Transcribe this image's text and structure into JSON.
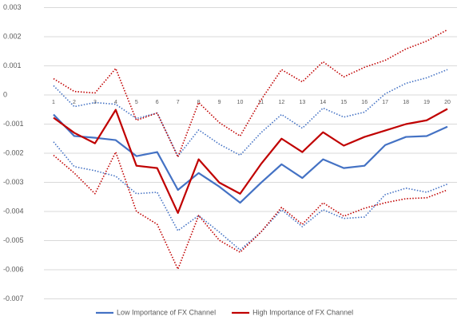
{
  "chart_data": {
    "type": "line",
    "categories": [
      "1",
      "2",
      "3",
      "4",
      "5",
      "6",
      "7",
      "8",
      "9",
      "10",
      "11",
      "12",
      "13",
      "14",
      "15",
      "16",
      "17",
      "18",
      "19",
      "20"
    ],
    "ylim": [
      -0.007,
      0.003
    ],
    "yticks": [
      0.003,
      0.002,
      0.001,
      0,
      -0.001,
      -0.002,
      -0.003,
      -0.004,
      -0.005,
      -0.006,
      -0.007
    ],
    "grid": true,
    "legend": "bottom",
    "series": [
      {
        "color": "#4472c4",
        "style": "dotted",
        "values": [
          0.00032,
          -0.0004,
          -0.00026,
          -0.00032,
          -0.00081,
          -0.00062,
          -0.0021,
          -0.0012,
          -0.00169,
          -0.00207,
          -0.0013,
          -0.00067,
          -0.00114,
          -0.00045,
          -0.00076,
          -0.00059,
          4e-05,
          0.0004,
          0.00059,
          0.00087
        ]
      },
      {
        "color": "#4472c4",
        "style": "dotted",
        "values": [
          -0.00161,
          -0.00246,
          -0.0026,
          -0.00279,
          -0.00339,
          -0.00334,
          -0.00466,
          -0.00414,
          -0.00471,
          -0.00532,
          -0.00471,
          -0.00394,
          -0.00452,
          -0.00394,
          -0.00424,
          -0.00419,
          -0.00342,
          -0.0032,
          -0.00334,
          -0.00306
        ]
      },
      {
        "color": "#c00000",
        "style": "dotted",
        "values": [
          0.00056,
          0.00012,
          7e-05,
          0.00091,
          -0.00087,
          -0.00062,
          -0.00213,
          -0.00026,
          -0.00095,
          -0.00141,
          -0.00018,
          0.00087,
          0.00045,
          0.00114,
          0.00062,
          0.00095,
          0.00119,
          0.00158,
          0.00185,
          0.00224
        ]
      },
      {
        "color": "#c00000",
        "style": "dotted",
        "values": [
          -0.00207,
          -0.00268,
          -0.00339,
          -0.00196,
          -0.004,
          -0.00444,
          -0.00598,
          -0.00414,
          -0.00499,
          -0.0054,
          -0.00471,
          -0.00386,
          -0.00444,
          -0.0037,
          -0.00416,
          -0.00389,
          -0.0037,
          -0.00356,
          -0.00353,
          -0.00326
        ]
      },
      {
        "name": "Low Importance of FX Channel",
        "color": "#4472c4",
        "style": "solid",
        "values": [
          -0.00067,
          -0.00141,
          -0.00147,
          -0.00155,
          -0.0021,
          -0.00196,
          -0.00326,
          -0.00268,
          -0.00315,
          -0.0037,
          -0.00302,
          -0.00238,
          -0.00285,
          -0.00221,
          -0.00251,
          -0.00243,
          -0.00172,
          -0.00144,
          -0.00141,
          -0.00109
        ]
      },
      {
        "name": "High Importance of FX Channel",
        "color": "#c00000",
        "style": "solid",
        "values": [
          -0.00078,
          -0.0013,
          -0.00166,
          -0.00051,
          -0.00243,
          -0.00251,
          -0.00405,
          -0.00221,
          -0.00301,
          -0.00339,
          -0.00238,
          -0.0015,
          -0.00196,
          -0.00128,
          -0.00174,
          -0.00144,
          -0.00122,
          -0.001,
          -0.00087,
          -0.00048
        ]
      }
    ]
  }
}
